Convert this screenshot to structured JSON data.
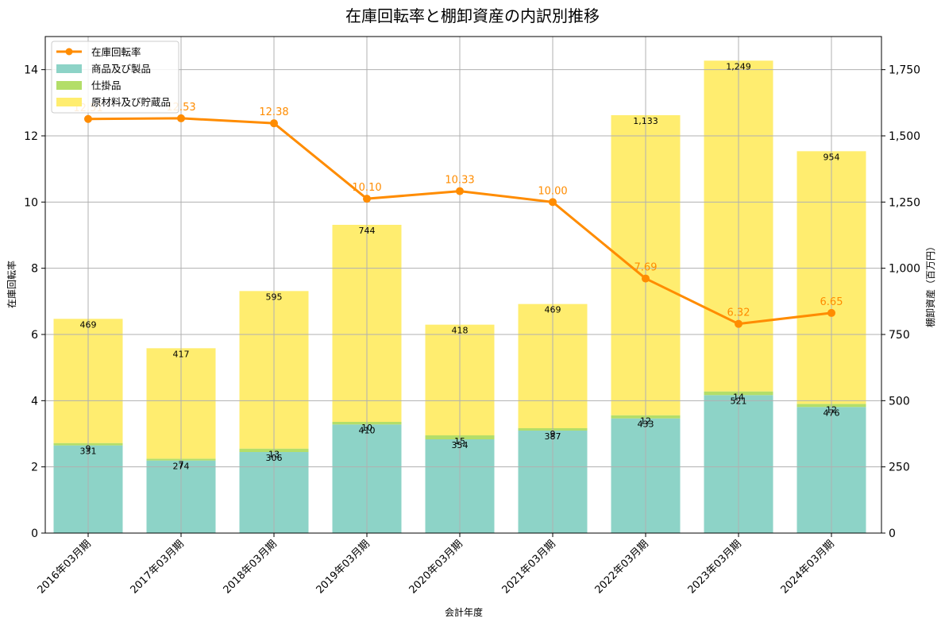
{
  "chart_data": {
    "type": "bar",
    "subtype": "stacked-bar-with-line-secondary-axis",
    "title": "在庫回転率と棚卸資産の内訳別推移",
    "xlabel": "会計年度",
    "ylabel_left": "在庫回転率",
    "ylabel_right": "棚卸資産（百万円）",
    "categories": [
      "2016年03月期",
      "2017年03月期",
      "2018年03月期",
      "2019年03月期",
      "2020年03月期",
      "2021年03月期",
      "2022年03月期",
      "2023年03月期",
      "2024年03月期"
    ],
    "bar_series": [
      {
        "name": "商品及び製品",
        "color": "#8dd3c7",
        "values": [
          331,
          274,
          306,
          410,
          354,
          387,
          433,
          521,
          476
        ]
      },
      {
        "name": "仕掛品",
        "color": "#b3de69",
        "values": [
          9,
          7,
          13,
          10,
          15,
          9,
          12,
          14,
          12
        ]
      },
      {
        "name": "原材料及び貯蔵品",
        "color": "#ffed6f",
        "values": [
          469,
          417,
          595,
          744,
          418,
          469,
          1133,
          1249,
          954
        ]
      }
    ],
    "line_series": {
      "name": "在庫回転率",
      "color": "#ff8c00",
      "values": [
        12.51,
        12.53,
        12.38,
        10.1,
        10.33,
        10.0,
        7.69,
        6.32,
        6.65
      ],
      "labels": [
        "12.51",
        "12.53",
        "12.38",
        "10.10",
        "10.33",
        "10.00",
        "7.69",
        "6.32",
        "6.65"
      ]
    },
    "ylim_left": [
      0,
      15
    ],
    "ylim_right": [
      0,
      1875
    ],
    "yticks_left": [
      0,
      2,
      4,
      6,
      8,
      10,
      12,
      14
    ],
    "yticks_right": [
      0,
      250,
      500,
      750,
      1000,
      1250,
      1500,
      1750
    ],
    "yticks_right_labels": [
      "0",
      "250",
      "500",
      "750",
      "1,000",
      "1,250",
      "1,500",
      "1,750"
    ],
    "grid": true,
    "legend_position": "upper left",
    "legend": [
      "在庫回転率",
      "商品及び製品",
      "仕掛品",
      "原材料及び貯蔵品"
    ]
  }
}
